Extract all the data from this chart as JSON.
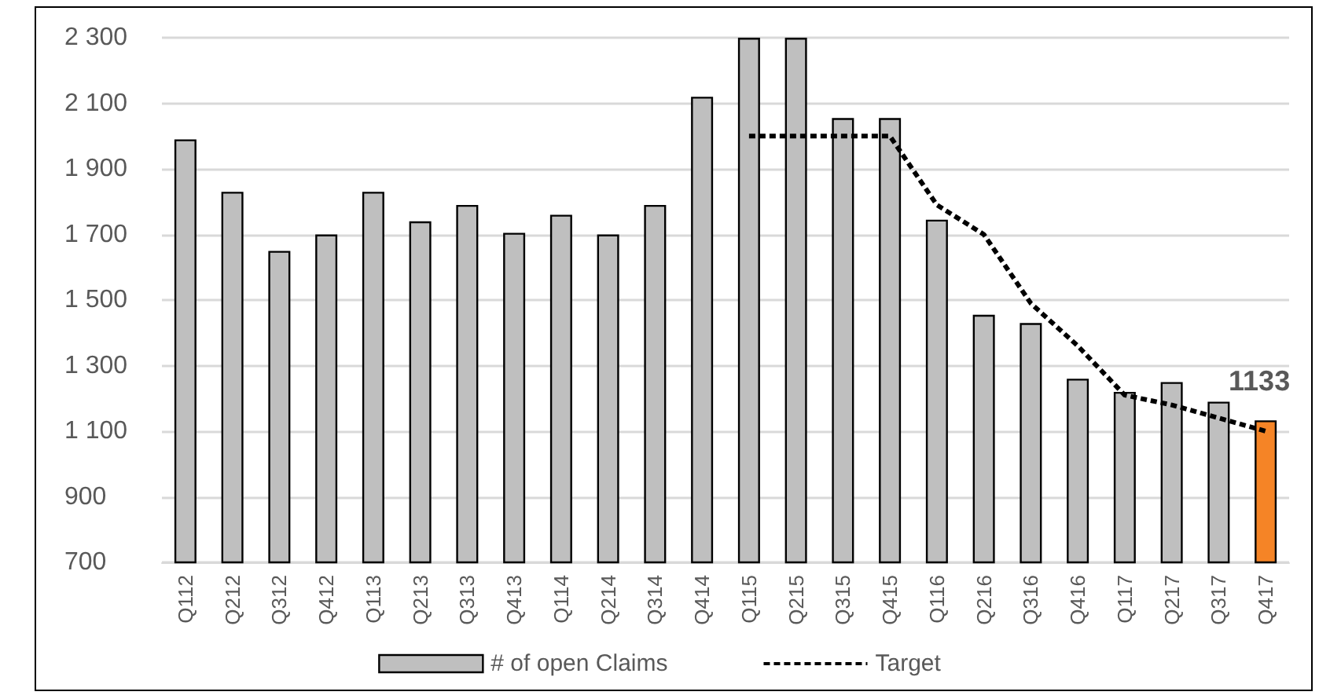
{
  "chart_data": {
    "type": "bar",
    "categories": [
      "Q112",
      "Q212",
      "Q312",
      "Q412",
      "Q113",
      "Q213",
      "Q313",
      "Q413",
      "Q114",
      "Q214",
      "Q314",
      "Q414",
      "Q115",
      "Q215",
      "Q315",
      "Q415",
      "Q116",
      "Q216",
      "Q316",
      "Q416",
      "Q117",
      "Q217",
      "Q317",
      "Q417"
    ],
    "series": [
      {
        "name": "# of open Claims",
        "color": "#bfbfbf",
        "colors": [
          "#bfbfbf",
          "#bfbfbf",
          "#bfbfbf",
          "#bfbfbf",
          "#bfbfbf",
          "#bfbfbf",
          "#bfbfbf",
          "#bfbfbf",
          "#bfbfbf",
          "#bfbfbf",
          "#bfbfbf",
          "#bfbfbf",
          "#bfbfbf",
          "#bfbfbf",
          "#bfbfbf",
          "#bfbfbf",
          "#bfbfbf",
          "#bfbfbf",
          "#bfbfbf",
          "#bfbfbf",
          "#bfbfbf",
          "#bfbfbf",
          "#bfbfbf",
          "#f58426"
        ],
        "values": [
          1990,
          1830,
          1650,
          1700,
          1830,
          1740,
          1790,
          1705,
          1760,
          1700,
          1790,
          2120,
          2300,
          2300,
          2055,
          2055,
          1745,
          1455,
          1430,
          1260,
          1220,
          1250,
          1190,
          1133
        ],
        "value_labels": [
          null,
          null,
          null,
          null,
          null,
          null,
          null,
          null,
          null,
          null,
          null,
          null,
          null,
          null,
          null,
          null,
          null,
          null,
          null,
          null,
          null,
          null,
          null,
          "1133"
        ]
      },
      {
        "name": "Target",
        "type": "line",
        "color": "#000000",
        "line_style": "dashed",
        "marker": "none",
        "values": [
          null,
          null,
          null,
          null,
          null,
          null,
          null,
          null,
          null,
          null,
          null,
          null,
          2000,
          2000,
          2000,
          2000,
          1790,
          1700,
          1490,
          1360,
          1210,
          1180,
          1140,
          1100
        ]
      }
    ],
    "ylim": [
      700,
      2300
    ],
    "yticks": [
      {
        "value": 700,
        "label": "700"
      },
      {
        "value": 900,
        "label": "900"
      },
      {
        "value": 1100,
        "label": "1 100"
      },
      {
        "value": 1300,
        "label": "1 300"
      },
      {
        "value": 1500,
        "label": "1 500"
      },
      {
        "value": 1700,
        "label": "1 700"
      },
      {
        "value": 1900,
        "label": "1 900"
      },
      {
        "value": 2100,
        "label": "2 100"
      },
      {
        "value": 2300,
        "label": "2 300"
      }
    ],
    "grid": "y",
    "legend": "bottom"
  }
}
